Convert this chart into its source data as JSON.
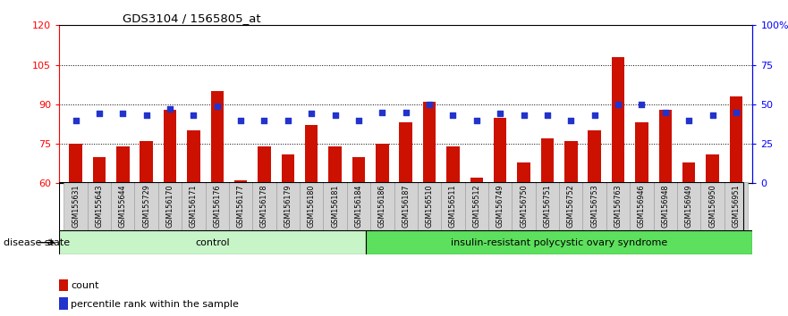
{
  "title": "GDS3104 / 1565805_at",
  "samples": [
    "GSM155631",
    "GSM155643",
    "GSM155644",
    "GSM155729",
    "GSM156170",
    "GSM156171",
    "GSM156176",
    "GSM156177",
    "GSM156178",
    "GSM156179",
    "GSM156180",
    "GSM156181",
    "GSM156184",
    "GSM156186",
    "GSM156187",
    "GSM156510",
    "GSM156511",
    "GSM156512",
    "GSM156749",
    "GSM156750",
    "GSM156751",
    "GSM156752",
    "GSM156753",
    "GSM156763",
    "GSM156946",
    "GSM156948",
    "GSM156949",
    "GSM156950",
    "GSM156951"
  ],
  "bar_values": [
    75,
    70,
    74,
    76,
    88,
    80,
    95,
    61,
    74,
    71,
    82,
    74,
    70,
    75,
    83,
    91,
    74,
    62,
    85,
    68,
    77,
    76,
    80,
    108,
    83,
    88,
    68,
    71,
    93
  ],
  "percentile_values": [
    40,
    44,
    44,
    43,
    47,
    43,
    49,
    40,
    40,
    40,
    44,
    43,
    40,
    45,
    45,
    50,
    43,
    40,
    44,
    43,
    43,
    40,
    43,
    50,
    50,
    45,
    40,
    43,
    45
  ],
  "n_control": 13,
  "group_labels": [
    "control",
    "insulin-resistant polycystic ovary syndrome"
  ],
  "group_colors_ctrl": "#c8f5c8",
  "group_colors_dis": "#5de05d",
  "bar_color": "#cc1100",
  "marker_color": "#2233cc",
  "bar_bottom": 60,
  "ylim_left": [
    60,
    120
  ],
  "ylim_right": [
    0,
    100
  ],
  "yticks_left": [
    60,
    75,
    90,
    105,
    120
  ],
  "ytick_labels_left": [
    "60",
    "75",
    "90",
    "105",
    "120"
  ],
  "yticks_right": [
    0,
    25,
    50,
    75,
    100
  ],
  "ytick_labels_right": [
    "0",
    "25",
    "50",
    "75",
    "100%"
  ],
  "legend_labels": [
    "count",
    "percentile rank within the sample"
  ],
  "disease_state_label": "disease state"
}
